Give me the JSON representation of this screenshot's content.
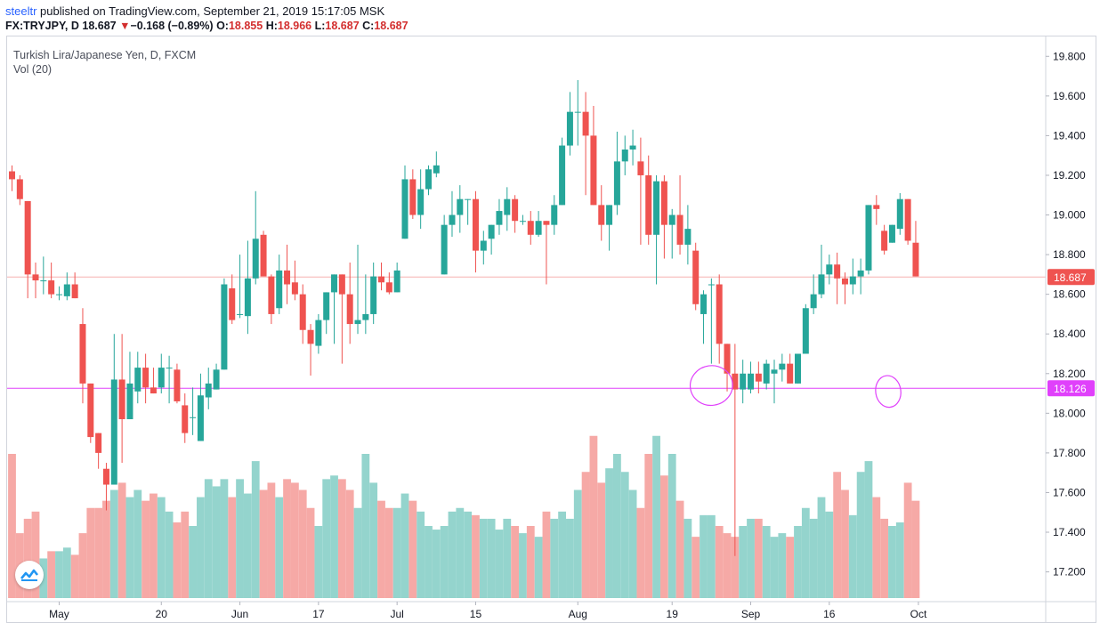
{
  "header": {
    "author": "steeltr",
    "published_text": " published on TradingView.com, September 21, 2019 15:17:05 MSK",
    "symbol": "FX:TRYJPY, D",
    "price": "18.687",
    "change": "−0.168 (−0.89%)",
    "o_label": "O:",
    "o_value": "18.855",
    "h_label": "H:",
    "h_value": "18.966",
    "l_label": "L:",
    "l_value": "18.687",
    "c_label": "C:",
    "c_value": "18.687",
    "down_icon": "triangle-down-icon"
  },
  "legend": {
    "series_title": "Turkish Lira/Japanese Yen, D, FXCM",
    "volume_title": "Vol (20)"
  },
  "logo": {
    "icon": "tradingview-logo-icon"
  },
  "colors": {
    "up": "#26a69a",
    "down": "#ef5350",
    "vol_up": "#94d4cd",
    "vol_down": "#f6a9a6",
    "price_line": "#ef5350",
    "level_line": "#e040fb",
    "annotation": "#e040fb"
  },
  "chart_data": {
    "type": "candlestick",
    "title": "Turkish Lira/Japanese Yen, D, FXCM",
    "ylim": [
      17.05,
      19.9
    ],
    "y_ticks": [
      "19.800",
      "19.600",
      "19.400",
      "19.200",
      "19.000",
      "18.800",
      "18.600",
      "18.400",
      "18.200",
      "18.000",
      "17.800",
      "17.600",
      "17.400",
      "17.200"
    ],
    "x_ticks": [
      {
        "label": "May",
        "index": 6
      },
      {
        "label": "20",
        "index": 19
      },
      {
        "label": "Jun",
        "index": 29
      },
      {
        "label": "17",
        "index": 39
      },
      {
        "label": "Jul",
        "index": 49
      },
      {
        "label": "15",
        "index": 59
      },
      {
        "label": "Aug",
        "index": 72
      },
      {
        "label": "19",
        "index": 84
      },
      {
        "label": "Sep",
        "index": 94
      },
      {
        "label": "16",
        "index": 104
      },
      {
        "label": "Oct",
        "index": 115
      }
    ],
    "last_price": {
      "value": 18.687,
      "label": "18.687"
    },
    "level": {
      "value": 18.126,
      "label": "18.126"
    },
    "annotations": [
      {
        "type": "ellipse",
        "index_center": 89,
        "price_center": 18.14,
        "index_radius": 2.7,
        "price_radius": 0.1
      },
      {
        "type": "ellipse",
        "index_center": 111.5,
        "price_center": 18.11,
        "index_radius": 1.6,
        "price_radius": 0.08
      }
    ],
    "candles": [
      [
        19.22,
        19.25,
        19.12,
        19.18,
        40
      ],
      [
        19.18,
        19.2,
        19.05,
        19.08,
        18
      ],
      [
        19.07,
        19.07,
        18.58,
        18.7,
        22
      ],
      [
        18.7,
        18.76,
        18.58,
        18.67,
        24
      ],
      [
        18.67,
        18.79,
        18.6,
        18.67,
        11
      ],
      [
        18.67,
        18.76,
        18.58,
        18.6,
        13
      ],
      [
        18.6,
        18.64,
        18.57,
        18.6,
        13
      ],
      [
        18.59,
        18.71,
        18.57,
        18.65,
        14
      ],
      [
        18.65,
        18.71,
        18.58,
        18.58,
        12
      ],
      [
        18.45,
        18.53,
        18.05,
        18.15,
        18
      ],
      [
        18.15,
        18.15,
        17.85,
        17.88,
        25
      ],
      [
        17.9,
        17.9,
        17.72,
        17.8,
        25
      ],
      [
        17.72,
        17.75,
        17.51,
        17.64,
        27
      ],
      [
        17.64,
        18.4,
        17.64,
        18.17,
        30
      ],
      [
        18.17,
        18.4,
        17.75,
        17.97,
        32
      ],
      [
        17.97,
        18.31,
        17.97,
        18.15,
        28
      ],
      [
        18.11,
        18.31,
        18.05,
        18.23,
        30
      ],
      [
        18.23,
        18.3,
        18.05,
        18.13,
        27
      ],
      [
        18.13,
        18.23,
        18.1,
        18.1,
        29
      ],
      [
        18.13,
        18.3,
        18.1,
        18.23,
        28
      ],
      [
        18.23,
        18.29,
        18.05,
        18.23,
        24
      ],
      [
        18.22,
        18.25,
        18.05,
        18.06,
        21
      ],
      [
        18.04,
        18.1,
        17.85,
        17.9,
        24
      ],
      [
        17.98,
        18.13,
        17.89,
        17.98,
        20
      ],
      [
        17.86,
        18.2,
        17.86,
        18.09,
        28
      ],
      [
        18.08,
        18.23,
        18.02,
        18.15,
        33
      ],
      [
        18.12,
        18.25,
        18.12,
        18.22,
        31
      ],
      [
        18.22,
        18.68,
        18.22,
        18.65,
        33
      ],
      [
        18.63,
        18.7,
        18.45,
        18.47,
        28
      ],
      [
        18.5,
        18.8,
        18.48,
        18.5,
        33
      ],
      [
        18.49,
        18.87,
        18.4,
        18.68,
        29
      ],
      [
        18.68,
        19.12,
        18.65,
        18.88,
        38
      ],
      [
        18.9,
        18.92,
        18.7,
        18.69,
        30
      ],
      [
        18.69,
        18.7,
        18.45,
        18.5,
        32
      ],
      [
        18.53,
        18.8,
        18.5,
        18.72,
        28
      ],
      [
        18.72,
        18.85,
        18.55,
        18.65,
        33
      ],
      [
        18.66,
        18.77,
        18.57,
        18.6,
        32
      ],
      [
        18.6,
        18.65,
        18.35,
        18.42,
        30
      ],
      [
        18.42,
        18.45,
        18.19,
        18.35,
        25
      ],
      [
        18.34,
        18.5,
        18.3,
        18.47,
        20
      ],
      [
        18.47,
        18.61,
        18.4,
        18.61,
        33
      ],
      [
        18.61,
        18.7,
        18.35,
        18.7,
        34
      ],
      [
        18.7,
        18.7,
        18.25,
        18.6,
        33
      ],
      [
        18.6,
        18.76,
        18.35,
        18.45,
        30
      ],
      [
        18.45,
        18.85,
        18.4,
        18.47,
        25
      ],
      [
        18.47,
        18.7,
        18.4,
        18.5,
        40
      ],
      [
        18.5,
        18.76,
        18.45,
        18.69,
        32
      ],
      [
        18.69,
        18.76,
        18.62,
        18.66,
        27
      ],
      [
        18.66,
        18.71,
        18.6,
        18.61,
        25
      ],
      [
        18.61,
        18.76,
        18.61,
        18.72,
        25
      ],
      [
        18.88,
        19.25,
        18.88,
        19.18,
        29
      ],
      [
        19.18,
        19.23,
        18.98,
        19.0,
        27
      ],
      [
        19.0,
        19.23,
        18.93,
        19.13,
        24
      ],
      [
        19.13,
        19.25,
        19.1,
        19.23,
        20
      ],
      [
        19.21,
        19.32,
        19.19,
        19.25,
        19
      ],
      [
        18.7,
        19.0,
        18.7,
        18.95,
        20
      ],
      [
        18.95,
        19.12,
        18.89,
        19.0,
        24
      ],
      [
        19.0,
        19.15,
        18.91,
        19.08,
        25
      ],
      [
        19.08,
        19.08,
        18.95,
        19.08,
        24
      ],
      [
        19.08,
        19.12,
        18.71,
        18.82,
        23
      ],
      [
        18.82,
        18.92,
        18.75,
        18.87,
        22
      ],
      [
        18.88,
        18.95,
        18.8,
        18.95,
        22
      ],
      [
        18.95,
        19.08,
        18.9,
        19.02,
        19
      ],
      [
        19.0,
        19.14,
        18.92,
        19.08,
        22
      ],
      [
        19.08,
        19.1,
        18.91,
        18.97,
        20
      ],
      [
        18.97,
        19.0,
        18.95,
        18.97,
        18
      ],
      [
        18.97,
        19.02,
        18.85,
        18.9,
        20
      ],
      [
        18.9,
        19.02,
        18.89,
        18.97,
        17
      ],
      [
        18.97,
        18.97,
        18.65,
        18.95,
        24
      ],
      [
        18.95,
        19.1,
        18.9,
        19.05,
        22
      ],
      [
        19.05,
        19.39,
        19.05,
        19.35,
        24
      ],
      [
        19.35,
        19.62,
        19.3,
        19.52,
        22
      ],
      [
        19.52,
        19.68,
        19.35,
        19.52,
        30
      ],
      [
        19.52,
        19.62,
        19.1,
        19.4,
        35
      ],
      [
        19.4,
        19.55,
        19.05,
        19.05,
        45
      ],
      [
        19.05,
        19.15,
        18.87,
        18.95,
        32
      ],
      [
        18.95,
        19.05,
        18.82,
        19.05,
        36
      ],
      [
        19.05,
        19.42,
        19.0,
        19.27,
        40
      ],
      [
        19.27,
        19.4,
        19.2,
        19.33,
        35
      ],
      [
        19.33,
        19.43,
        19.25,
        19.35,
        30
      ],
      [
        19.27,
        19.39,
        18.85,
        19.2,
        25
      ],
      [
        19.2,
        19.3,
        18.85,
        18.9,
        40
      ],
      [
        18.9,
        19.2,
        18.65,
        19.17,
        45
      ],
      [
        19.17,
        19.2,
        18.78,
        18.95,
        34
      ],
      [
        18.95,
        19.03,
        18.78,
        19.0,
        40
      ],
      [
        19.0,
        19.2,
        18.8,
        18.85,
        27
      ],
      [
        18.85,
        19.05,
        18.75,
        18.93,
        22
      ],
      [
        18.82,
        18.86,
        18.52,
        18.55,
        17
      ],
      [
        18.5,
        18.62,
        18.35,
        18.6,
        23
      ],
      [
        18.65,
        18.68,
        18.25,
        18.65,
        23
      ],
      [
        18.65,
        18.7,
        18.25,
        18.35,
        20
      ],
      [
        18.35,
        18.35,
        18.11,
        18.2,
        18
      ],
      [
        18.2,
        18.35,
        17.28,
        18.12,
        17
      ],
      [
        18.12,
        18.27,
        18.05,
        18.2,
        20
      ],
      [
        18.12,
        18.26,
        18.1,
        18.2,
        22
      ],
      [
        18.2,
        18.26,
        18.1,
        18.16,
        22
      ],
      [
        18.15,
        18.27,
        18.12,
        18.25,
        20
      ],
      [
        18.2,
        18.27,
        18.05,
        18.22,
        17
      ],
      [
        18.22,
        18.3,
        18.16,
        18.25,
        18
      ],
      [
        18.25,
        18.3,
        18.15,
        18.15,
        17
      ],
      [
        18.15,
        18.3,
        18.15,
        18.3,
        20
      ],
      [
        18.3,
        18.55,
        18.3,
        18.53,
        25
      ],
      [
        18.53,
        18.7,
        18.5,
        18.6,
        22
      ],
      [
        18.6,
        18.85,
        18.58,
        18.7,
        28
      ],
      [
        18.7,
        18.8,
        18.65,
        18.75,
        24
      ],
      [
        18.75,
        18.81,
        18.55,
        18.68,
        35
      ],
      [
        18.68,
        18.71,
        18.55,
        18.65,
        30
      ],
      [
        18.65,
        18.78,
        18.6,
        18.69,
        23
      ],
      [
        18.69,
        18.78,
        18.6,
        18.72,
        35
      ],
      [
        18.72,
        19.05,
        18.7,
        19.05,
        38
      ],
      [
        19.05,
        19.1,
        18.95,
        19.03,
        28
      ],
      [
        18.92,
        18.95,
        18.8,
        18.82,
        22
      ],
      [
        18.86,
        18.95,
        18.86,
        18.95,
        20
      ],
      [
        18.93,
        19.11,
        18.9,
        19.08,
        21
      ],
      [
        19.08,
        19.08,
        18.85,
        18.87,
        32
      ],
      [
        18.86,
        18.97,
        18.69,
        18.69,
        27
      ]
    ]
  }
}
